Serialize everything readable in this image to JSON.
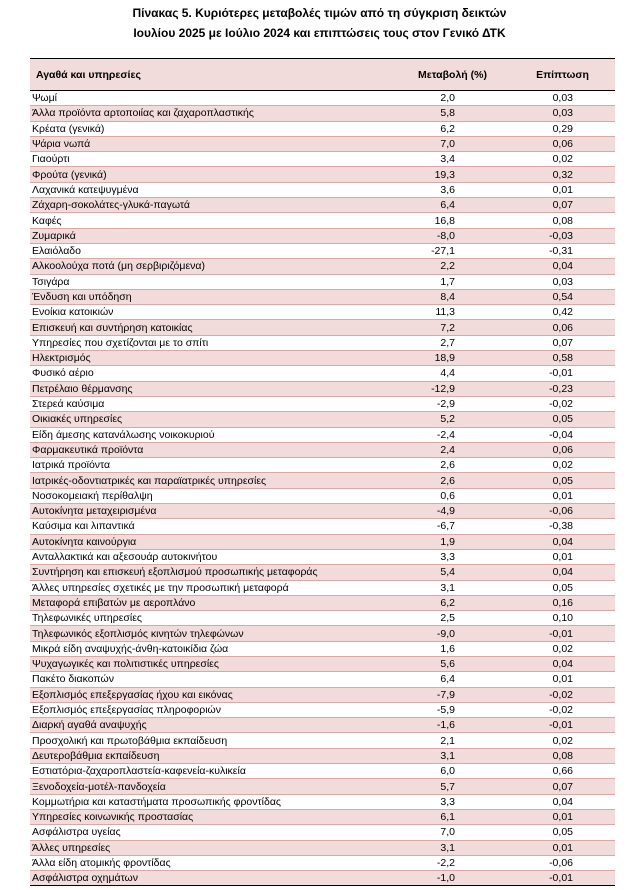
{
  "header": {
    "title_line1": "Πίνακας  5. Κυριότερες μεταβολές τιμών από τη σύγκριση δεικτών",
    "title_line2": "Ιουλίου 2025 με Ιούλιο 2024 και επιπτώσεις τους στον Γενικό ΔΤΚ"
  },
  "table": {
    "columns": [
      "Αγαθά και υπηρεσίες",
      "Μεταβολή (%)",
      "Επίπτωση"
    ],
    "rows": [
      [
        "Ψωμί",
        "2,0",
        "0,03"
      ],
      [
        "Άλλα προϊόντα αρτοποιίας και ζαχαροπλαστικής",
        "5,8",
        "0,03"
      ],
      [
        "Κρέατα (γενικά)",
        "6,2",
        "0,29"
      ],
      [
        "Ψάρια νωπά",
        "7,0",
        "0,06"
      ],
      [
        "Γιαούρτι",
        "3,4",
        "0,02"
      ],
      [
        "Φρούτα (γενικά)",
        "19,3",
        "0,32"
      ],
      [
        "Λαχανικά κατεψυγμένα",
        "3,6",
        "0,01"
      ],
      [
        "Ζάχαρη-σοκολάτες-γλυκά-παγωτά",
        "6,4",
        "0,07"
      ],
      [
        "Καφές",
        "16,8",
        "0,08"
      ],
      [
        "Ζυμαρικά",
        "-8,0",
        "-0,03"
      ],
      [
        "Ελαιόλαδο",
        "-27,1",
        "-0,31"
      ],
      [
        "Αλκοολούχα ποτά (μη σερβιριζόμενα)",
        "2,2",
        "0,04"
      ],
      [
        "Τσιγάρα",
        "1,7",
        "0,03"
      ],
      [
        "Ένδυση και υπόδηση",
        "8,4",
        "0,54"
      ],
      [
        "Ενοίκια κατοικιών",
        "11,3",
        "0,42"
      ],
      [
        "Επισκευή και συντήρηση κατοικίας",
        "7,2",
        "0,06"
      ],
      [
        "Υπηρεσίες που σχετίζονται με το σπίτι",
        "2,7",
        "0,07"
      ],
      [
        "Ηλεκτρισμός",
        "18,9",
        "0,58"
      ],
      [
        "Φυσικό αέριο",
        "4,4",
        "-0,01"
      ],
      [
        "Πετρέλαιο θέρμανσης",
        "-12,9",
        "-0,23"
      ],
      [
        "Στερεά καύσιμα",
        "-2,9",
        "-0,02"
      ],
      [
        "Οικιακές υπηρεσίες",
        "5,2",
        "0,05"
      ],
      [
        "Είδη άμεσης κατανάλωσης νοικοκυριού",
        "-2,4",
        "-0,04"
      ],
      [
        "Φαρμακευτικά προϊόντα",
        "2,4",
        "0,06"
      ],
      [
        "Ιατρικά προϊόντα",
        "2,6",
        "0,02"
      ],
      [
        "Ιατρικές-οδοντιατρικές και παραϊατρικές υπηρεσίες",
        "2,6",
        "0,05"
      ],
      [
        "Νοσοκομειακή περίθαλψη",
        "0,6",
        "0,01"
      ],
      [
        "Αυτοκίνητα μεταχειρισμένα",
        "-4,9",
        "-0,06"
      ],
      [
        "Καύσιμα και λιπαντικά",
        "-6,7",
        "-0,38"
      ],
      [
        "Αυτοκίνητα καινούργια",
        "1,9",
        "0,04"
      ],
      [
        "Ανταλλακτικά και αξεσουάρ αυτοκινήτου",
        "3,3",
        "0,01"
      ],
      [
        "Συντήρηση και επισκευή εξοπλισμού προσωπικής μεταφοράς",
        "5,4",
        "0,04"
      ],
      [
        "Άλλες υπηρεσίες σχετικές με την προσωπική μεταφορά",
        "3,1",
        "0,05"
      ],
      [
        "Μεταφορά επιβατών με αεροπλάνο",
        "6,2",
        "0,16"
      ],
      [
        "Τηλεφωνικές υπηρεσίες",
        "2,5",
        "0,10"
      ],
      [
        "Τηλεφωνικός εξοπλισμός κινητών τηλεφώνων",
        "-9,0",
        "-0,01"
      ],
      [
        "Μικρά είδη αναψυχής-άνθη-κατοικίδια ζώα",
        "1,6",
        "0,02"
      ],
      [
        "Ψυχαγωγικές και πολιτιστικές υπηρεσίες",
        "5,6",
        "0,04"
      ],
      [
        "Πακέτο διακοπών",
        "6,4",
        "0,01"
      ],
      [
        "Εξοπλισμός επεξεργασίας ήχου και εικόνας",
        "-7,9",
        "-0,02"
      ],
      [
        "Εξοπλισμός επεξεργασίας πληροφοριών",
        "-5,9",
        "-0,02"
      ],
      [
        "Διαρκή αγαθά αναψυχής",
        "-1,6",
        "-0,01"
      ],
      [
        "Προσχολική και πρωτοβάθμια εκπαίδευση",
        "2,1",
        "0,02"
      ],
      [
        "Δευτεροβάθμια εκπαίδευση",
        "3,1",
        "0,08"
      ],
      [
        "Εστιατόρια-ζαχαροπλαστεία-καφενεία-κυλικεία",
        "6,0",
        "0,66"
      ],
      [
        "Ξενοδοχεία-μοτέλ-πανδοχεία",
        "5,7",
        "0,07"
      ],
      [
        "Κομμωτήρια και καταστήματα προσωπικής φροντίδας",
        "3,3",
        "0,04"
      ],
      [
        "Υπηρεσίες κοινωνικής προστασίας",
        "6,1",
        "0,01"
      ],
      [
        "Ασφάλιστρα υγείας",
        "7,0",
        "0,05"
      ],
      [
        "Άλλες υπηρεσίες",
        "3,1",
        "0,01"
      ],
      [
        "Άλλα είδη ατομικής φροντίδας",
        "-2,2",
        "-0,06"
      ],
      [
        "Ασφάλιστρα οχημάτων",
        "-1,0",
        "-0,01"
      ]
    ]
  }
}
